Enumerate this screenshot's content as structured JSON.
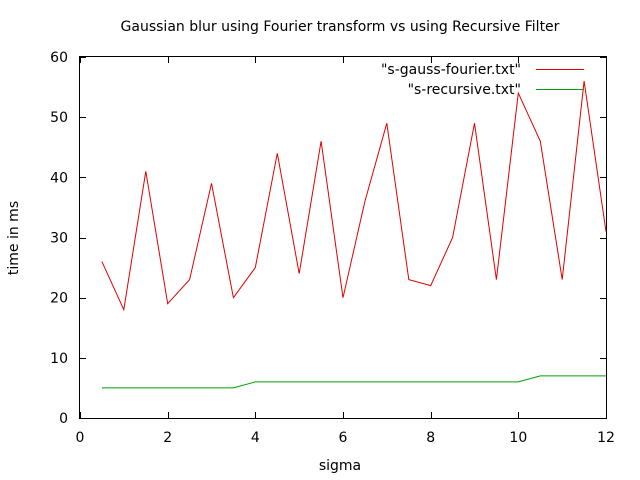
{
  "chart_data": {
    "type": "line",
    "title": "Gaussian blur using Fourier transform vs using Recursive Filter",
    "xlabel": "sigma",
    "ylabel": "time in ms",
    "xlim": [
      0,
      12
    ],
    "ylim": [
      0,
      60
    ],
    "xticks": [
      0,
      2,
      4,
      6,
      8,
      10,
      12
    ],
    "yticks": [
      0,
      10,
      20,
      30,
      40,
      50,
      60
    ],
    "grid": false,
    "legend_position": "top-right",
    "series": [
      {
        "name": "\"s-gauss-fourier.txt\"",
        "color": "#e00000",
        "x": [
          0.5,
          1,
          1.5,
          2,
          2.5,
          3,
          3.5,
          4,
          4.5,
          5,
          5.5,
          6,
          6.5,
          7,
          7.5,
          8,
          8.5,
          9,
          9.5,
          10,
          10.5,
          11,
          11.5,
          12
        ],
        "y": [
          26,
          18,
          41,
          19,
          23,
          39,
          20,
          25,
          44,
          24,
          46,
          20,
          36,
          49,
          23,
          22,
          30,
          49,
          23,
          54,
          46,
          23,
          56,
          31
        ]
      },
      {
        "name": "\"s-recursive.txt\"",
        "color": "#00a000",
        "x": [
          0.5,
          1,
          1.5,
          2,
          2.5,
          3,
          3.5,
          4,
          4.5,
          5,
          5.5,
          6,
          6.5,
          7,
          7.5,
          8,
          8.5,
          9,
          9.5,
          10,
          10.5,
          11,
          11.5,
          12
        ],
        "y": [
          5,
          5,
          5,
          5,
          5,
          5,
          5,
          6,
          6,
          6,
          6,
          6,
          6,
          6,
          6,
          6,
          6,
          6,
          6,
          6,
          7,
          7,
          7,
          7
        ]
      }
    ]
  }
}
